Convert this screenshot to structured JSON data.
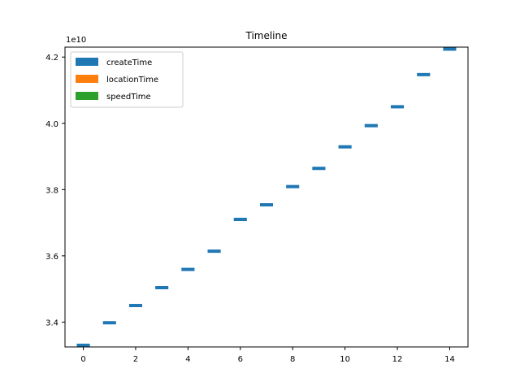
{
  "chart_data": {
    "type": "bar",
    "title": "Timeline",
    "xlabel": "",
    "ylabel": "",
    "y_offset_label": "1e10",
    "xlim": [
      -0.7,
      14.7
    ],
    "ylim": [
      3.325,
      4.23
    ],
    "x_ticks": [
      0,
      2,
      4,
      6,
      8,
      10,
      12,
      14
    ],
    "x_tick_labels": [
      "0",
      "2",
      "4",
      "6",
      "8",
      "10",
      "12",
      "14"
    ],
    "y_ticks": [
      3.4,
      3.6,
      3.8,
      4.0,
      4.2
    ],
    "y_tick_labels": [
      "3.4",
      "3.6",
      "3.8",
      "4.0",
      "4.2"
    ],
    "legend_position": "upper-left",
    "grid": false,
    "series": [
      {
        "name": "createTime",
        "color": "#1f77b4",
        "x": [
          0,
          1,
          2,
          3,
          4,
          5,
          6,
          7,
          8,
          9,
          10,
          11,
          12,
          13,
          14
        ],
        "values": [
          3.33,
          3.398,
          3.45,
          3.504,
          3.559,
          3.614,
          3.71,
          3.754,
          3.809,
          3.864,
          3.929,
          3.993,
          4.05,
          4.147,
          4.224
        ]
      },
      {
        "name": "locationTime",
        "color": "#ff7f0e",
        "x": [],
        "values": []
      },
      {
        "name": "speedTime",
        "color": "#2ca02c",
        "x": [],
        "values": []
      }
    ]
  }
}
